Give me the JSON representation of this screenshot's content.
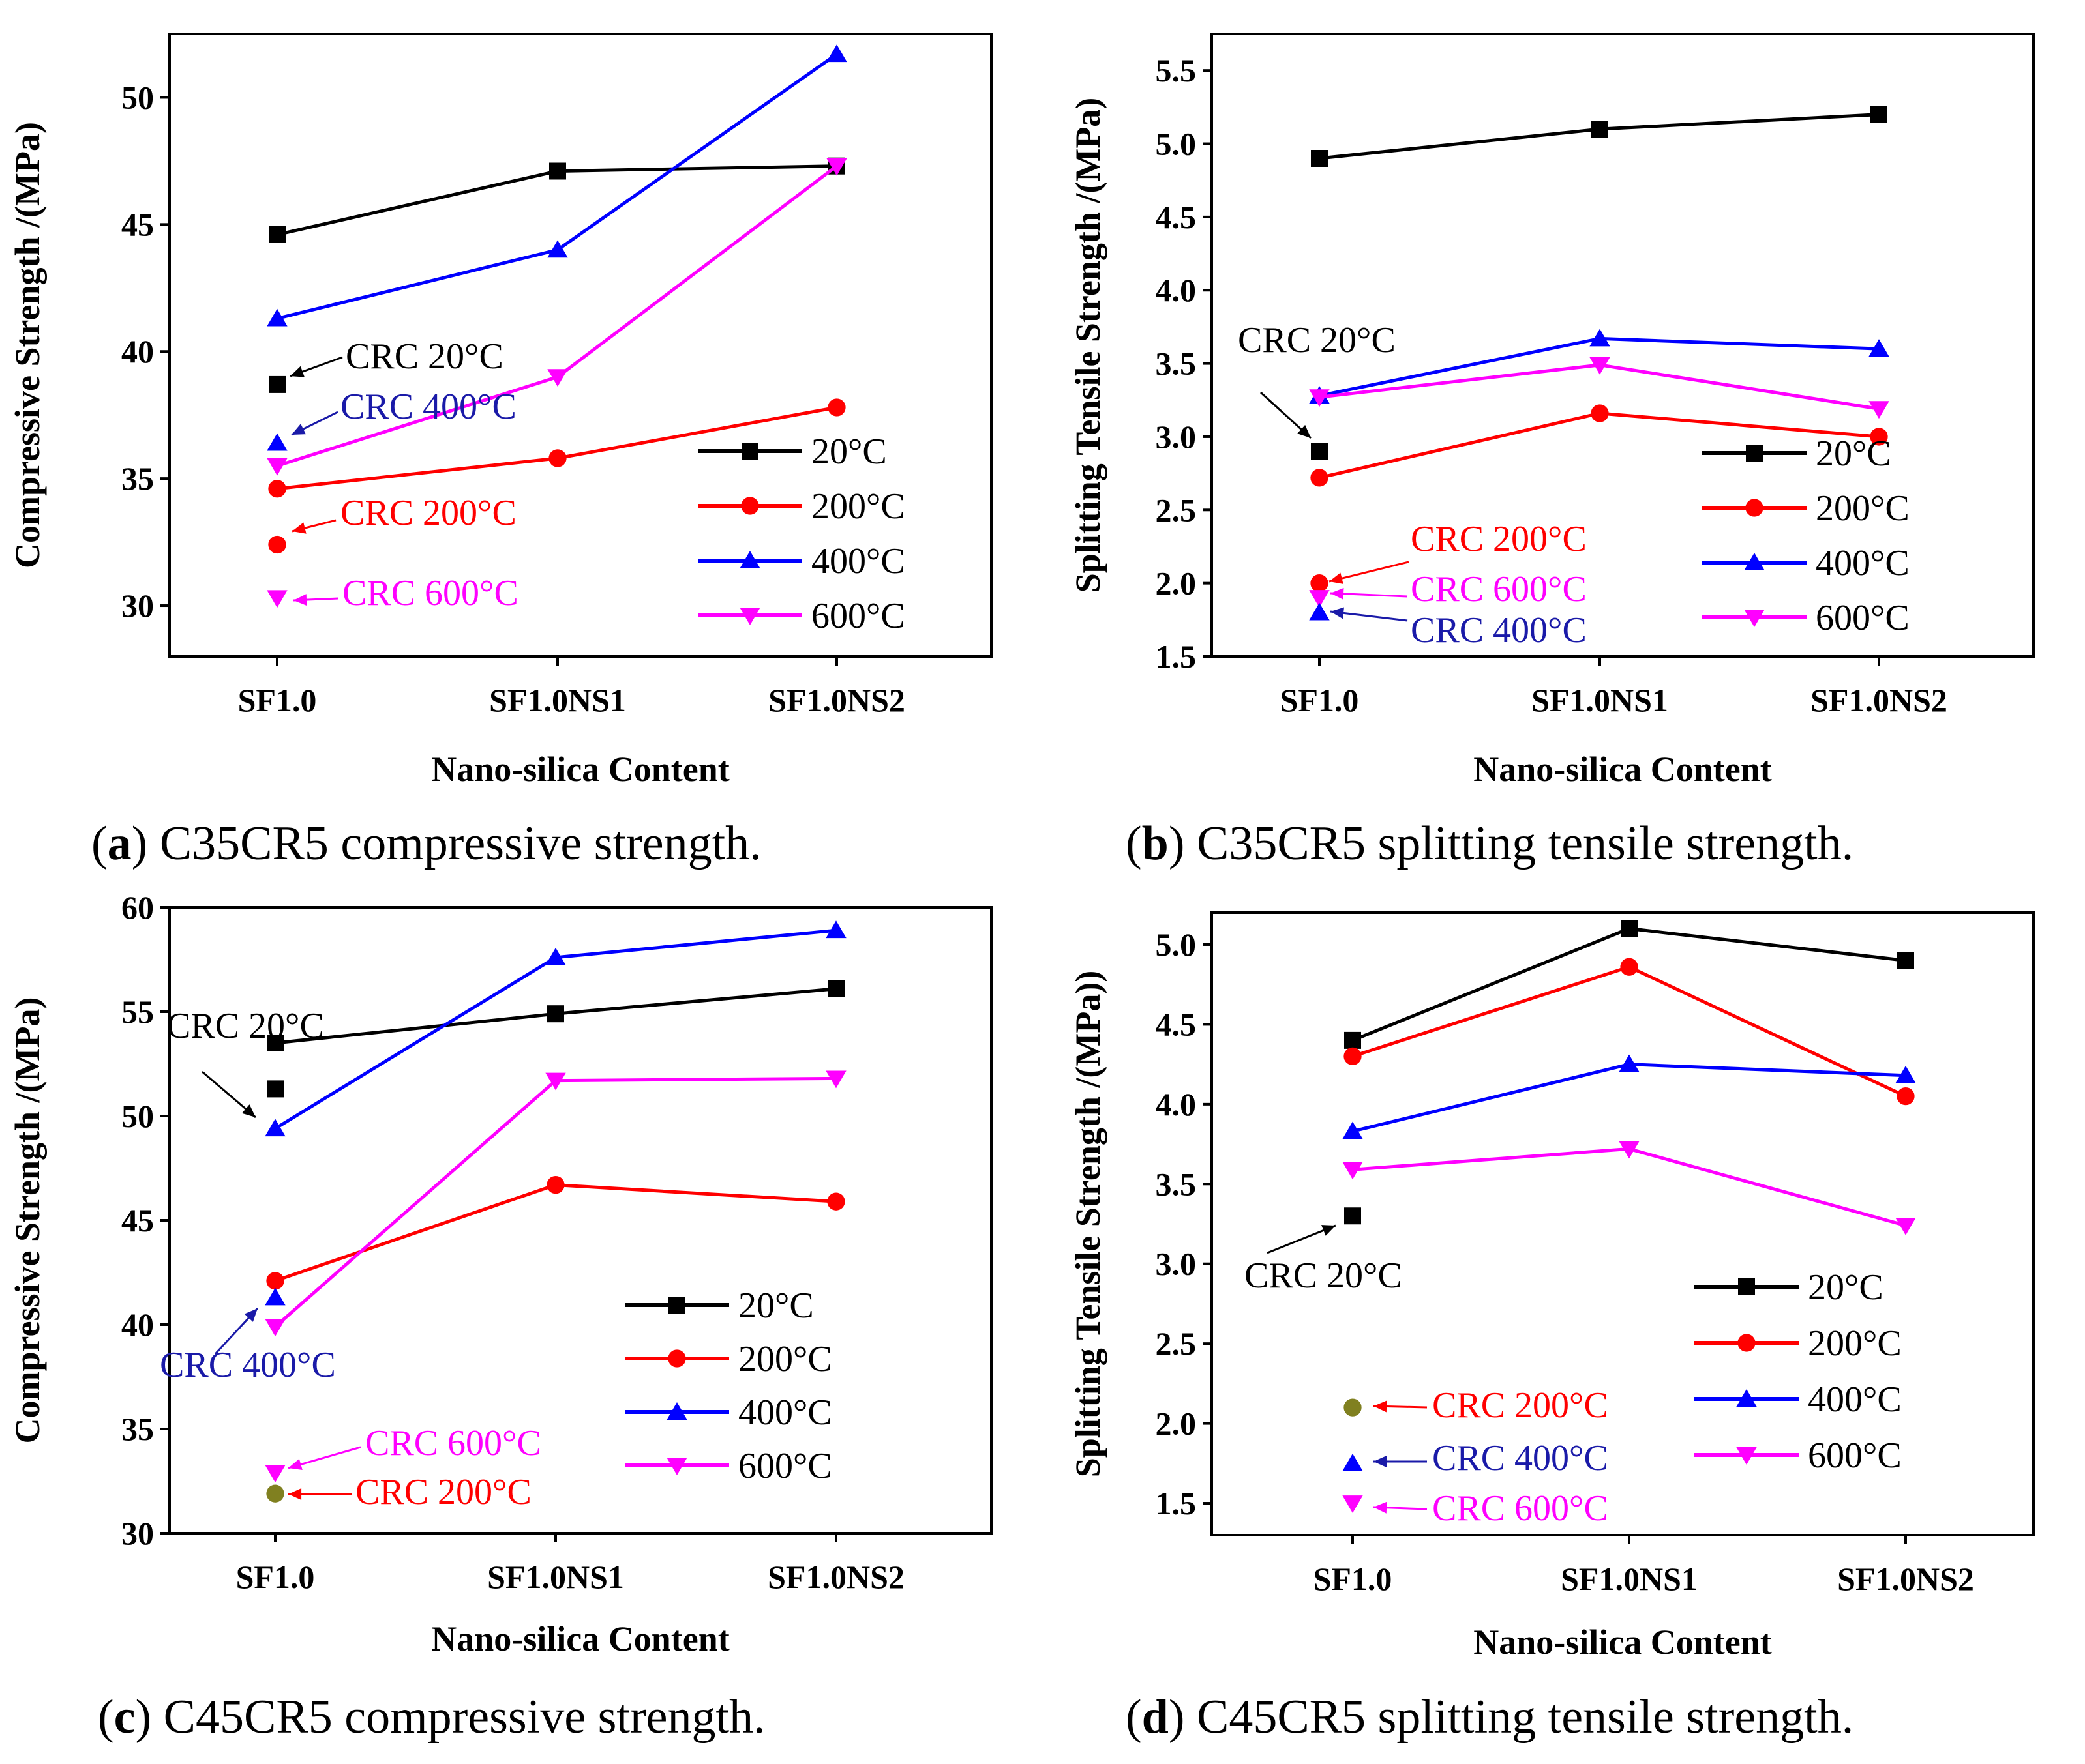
{
  "panels": [
    {
      "id": "a",
      "caption": {
        "letter": "a",
        "text": "C35CR5 compressive strength."
      },
      "chart_data": {
        "type": "line",
        "title": "",
        "xlabel": "Nano-silica  Content",
        "ylabel": "Compressive  Strength  /(MPa)",
        "categories": [
          "SF1.0",
          "SF1.0NS1",
          "SF1.0NS2"
        ],
        "ylim": [
          28,
          52.5
        ],
        "yticks": [
          30,
          35,
          40,
          45,
          50
        ],
        "yticklabels": [
          "30",
          "35",
          "40",
          "45",
          "50"
        ],
        "legend_position": "lower-right",
        "series": [
          {
            "name": "20°C",
            "color": "#000000",
            "marker": "square",
            "values": [
              44.6,
              47.1,
              47.3
            ]
          },
          {
            "name": "200°C",
            "color": "#ff0000",
            "marker": "circle",
            "values": [
              34.6,
              35.8,
              37.8
            ]
          },
          {
            "name": "400°C",
            "color": "#0000ff",
            "marker": "triangle-up",
            "values": [
              41.3,
              44.0,
              51.7
            ]
          },
          {
            "name": "600°C",
            "color": "#ff00ff",
            "marker": "triangle-down",
            "values": [
              35.5,
              39.0,
              47.3
            ]
          }
        ],
        "reference_points": [
          {
            "label": "CRC 20°C",
            "value": 38.7,
            "marker": "square",
            "color": "#000000",
            "label_color": "#000000"
          },
          {
            "label": "CRC 400°C",
            "value": 36.4,
            "marker": "triangle-up",
            "color": "#0000ff",
            "label_color": "#1a1aa8"
          },
          {
            "label": "CRC 200°C",
            "value": 32.4,
            "marker": "circle",
            "color": "#ff0000",
            "label_color": "#ff0000"
          },
          {
            "label": "CRC 600°C",
            "value": 30.3,
            "marker": "triangle-down",
            "color": "#ff00ff",
            "label_color": "#ff00ff"
          }
        ]
      }
    },
    {
      "id": "b",
      "caption": {
        "letter": "b",
        "text": "C35CR5 splitting tensile strength."
      },
      "chart_data": {
        "type": "line",
        "title": "",
        "xlabel": "Nano-silica  Content",
        "ylabel": "Splitting Tensile Strength  /(MPa)",
        "categories": [
          "SF1.0",
          "SF1.0NS1",
          "SF1.0NS2"
        ],
        "ylim": [
          1.5,
          5.75
        ],
        "yticks": [
          1.5,
          2.0,
          2.5,
          3.0,
          3.5,
          4.0,
          4.5,
          5.0,
          5.5
        ],
        "yticklabels": [
          "1.5",
          "2.0",
          "2.5",
          "3.0",
          "3.5",
          "4.0",
          "4.5",
          "5.0",
          "5.5"
        ],
        "legend_position": "lower-right",
        "series": [
          {
            "name": "20°C",
            "color": "#000000",
            "marker": "square",
            "values": [
              4.9,
              5.1,
              5.2
            ]
          },
          {
            "name": "200°C",
            "color": "#ff0000",
            "marker": "circle",
            "values": [
              2.72,
              3.16,
              3.0
            ]
          },
          {
            "name": "400°C",
            "color": "#0000ff",
            "marker": "triangle-up",
            "values": [
              3.28,
              3.67,
              3.6
            ]
          },
          {
            "name": "600°C",
            "color": "#ff00ff",
            "marker": "triangle-down",
            "values": [
              3.27,
              3.49,
              3.19
            ]
          }
        ],
        "reference_points": [
          {
            "label": "CRC 20°C",
            "value": 2.9,
            "marker": "square",
            "color": "#000000",
            "label_color": "#000000"
          },
          {
            "label": "CRC 200°C",
            "value": 2.0,
            "marker": "circle",
            "color": "#ff0000",
            "label_color": "#ff0000"
          },
          {
            "label": "CRC 600°C",
            "value": 1.9,
            "marker": "triangle-down",
            "color": "#ff00ff",
            "label_color": "#ff00ff"
          },
          {
            "label": "CRC 400°C",
            "value": 1.8,
            "marker": "triangle-up",
            "color": "#0000ff",
            "label_color": "#1a1aa8"
          }
        ]
      }
    },
    {
      "id": "c",
      "caption": {
        "letter": "c",
        "text": "C45CR5 compressive strength."
      },
      "chart_data": {
        "type": "line",
        "title": "",
        "xlabel": "Nano-silica  Content",
        "ylabel": "Compressive  Strength  /(MPa)",
        "categories": [
          "SF1.0",
          "SF1.0NS1",
          "SF1.0NS2"
        ],
        "ylim": [
          30,
          60
        ],
        "yticks": [
          30,
          35,
          40,
          45,
          50,
          55,
          60
        ],
        "yticklabels": [
          "30",
          "35",
          "40",
          "45",
          "50",
          "55",
          "60"
        ],
        "legend_position": "lower-right",
        "series": [
          {
            "name": "20°C",
            "color": "#000000",
            "marker": "square",
            "values": [
              53.5,
              54.9,
              56.1
            ]
          },
          {
            "name": "200°C",
            "color": "#ff0000",
            "marker": "circle",
            "values": [
              42.1,
              46.7,
              45.9
            ]
          },
          {
            "name": "400°C",
            "color": "#0000ff",
            "marker": "triangle-up",
            "values": [
              49.4,
              57.6,
              58.9
            ]
          },
          {
            "name": "600°C",
            "color": "#ff00ff",
            "marker": "triangle-down",
            "values": [
              39.9,
              51.7,
              51.8
            ]
          }
        ],
        "reference_points": [
          {
            "label": "CRC 20°C",
            "value": 51.3,
            "marker": "square",
            "color": "#000000",
            "label_color": "#000000"
          },
          {
            "label": "CRC 400°C",
            "value": 41.3,
            "marker": "triangle-up",
            "color": "#0000ff",
            "label_color": "#1a1aa8"
          },
          {
            "label": "CRC 600°C",
            "value": 32.9,
            "marker": "triangle-down",
            "color": "#ff00ff",
            "label_color": "#ff00ff"
          },
          {
            "label": "CRC 200°C",
            "value": 31.9,
            "marker": "circle",
            "color": "#808020",
            "label_color": "#ff0000"
          }
        ]
      }
    },
    {
      "id": "d",
      "caption": {
        "letter": "d",
        "text": "C45CR5 splitting tensile strength."
      },
      "chart_data": {
        "type": "line",
        "title": "",
        "xlabel": "Nano-silica  Content",
        "ylabel": "Splitting Tensile Strength  /(MPa))",
        "categories": [
          "SF1.0",
          "SF1.0NS1",
          "SF1.0NS2"
        ],
        "ylim": [
          1.3,
          5.2
        ],
        "yticks": [
          1.5,
          2.0,
          2.5,
          3.0,
          3.5,
          4.0,
          4.5,
          5.0
        ],
        "yticklabels": [
          "1.5",
          "2.0",
          "2.5",
          "3.0",
          "3.5",
          "4.0",
          "4.5",
          "5.0"
        ],
        "legend_position": "lower-right",
        "series": [
          {
            "name": "20°C",
            "color": "#000000",
            "marker": "square",
            "values": [
              4.4,
              5.1,
              4.9
            ]
          },
          {
            "name": "200°C",
            "color": "#ff0000",
            "marker": "circle",
            "values": [
              4.3,
              4.86,
              4.05
            ]
          },
          {
            "name": "400°C",
            "color": "#0000ff",
            "marker": "triangle-up",
            "values": [
              3.83,
              4.25,
              4.18
            ]
          },
          {
            "name": "600°C",
            "color": "#ff00ff",
            "marker": "triangle-down",
            "values": [
              3.59,
              3.72,
              3.24
            ]
          }
        ],
        "reference_points": [
          {
            "label": "CRC 20°C",
            "value": 3.3,
            "marker": "square",
            "color": "#000000",
            "label_color": "#000000"
          },
          {
            "label": "CRC 200°C",
            "value": 2.1,
            "marker": "circle",
            "color": "#808020",
            "label_color": "#ff0000"
          },
          {
            "label": "CRC 400°C",
            "value": 1.75,
            "marker": "triangle-up",
            "color": "#0000ff",
            "label_color": "#1a1aa8"
          },
          {
            "label": "CRC 600°C",
            "value": 1.5,
            "marker": "triangle-down",
            "color": "#ff00ff",
            "label_color": "#ff00ff"
          }
        ]
      }
    }
  ]
}
